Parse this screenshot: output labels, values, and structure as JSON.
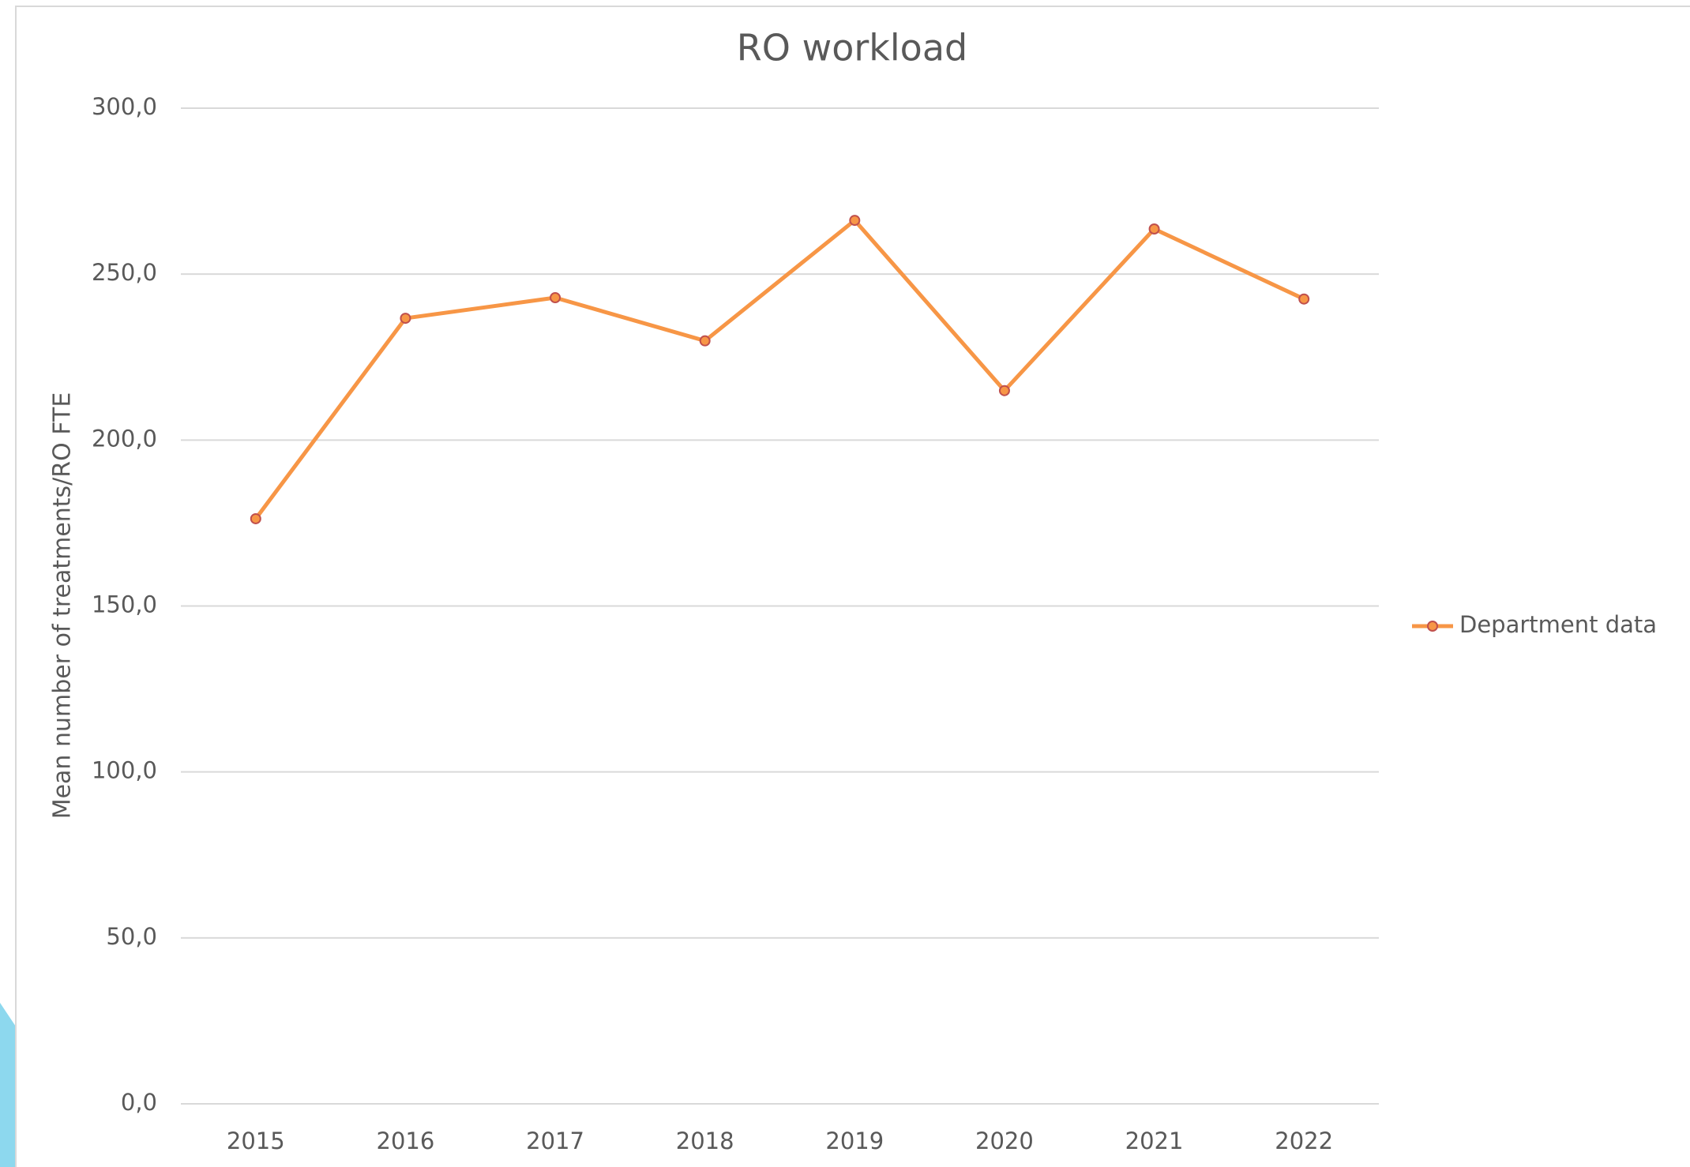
{
  "chart_data": {
    "type": "line",
    "title": "RO workload",
    "y_label": "Mean number of treatments/RO FTE",
    "categories": [
      "2015",
      "2016",
      "2017",
      "2018",
      "2019",
      "2020",
      "2021",
      "2022"
    ],
    "series": [
      {
        "name": "Department data",
        "color": "#f79646",
        "values": [
          176.3,
          236.7,
          242.9,
          229.9,
          266.2,
          214.9,
          263.6,
          242.5
        ]
      }
    ],
    "ylim": [
      0,
      300
    ],
    "yticks": [
      {
        "value": 0,
        "label": "0,0"
      },
      {
        "value": 50,
        "label": "50,0"
      },
      {
        "value": 100,
        "label": "100,0"
      },
      {
        "value": 150,
        "label": "150,0"
      },
      {
        "value": 200,
        "label": "200,0"
      },
      {
        "value": 250,
        "label": "250,0"
      },
      {
        "value": 300,
        "label": "300,0"
      }
    ],
    "grid": true,
    "legend": "right"
  }
}
